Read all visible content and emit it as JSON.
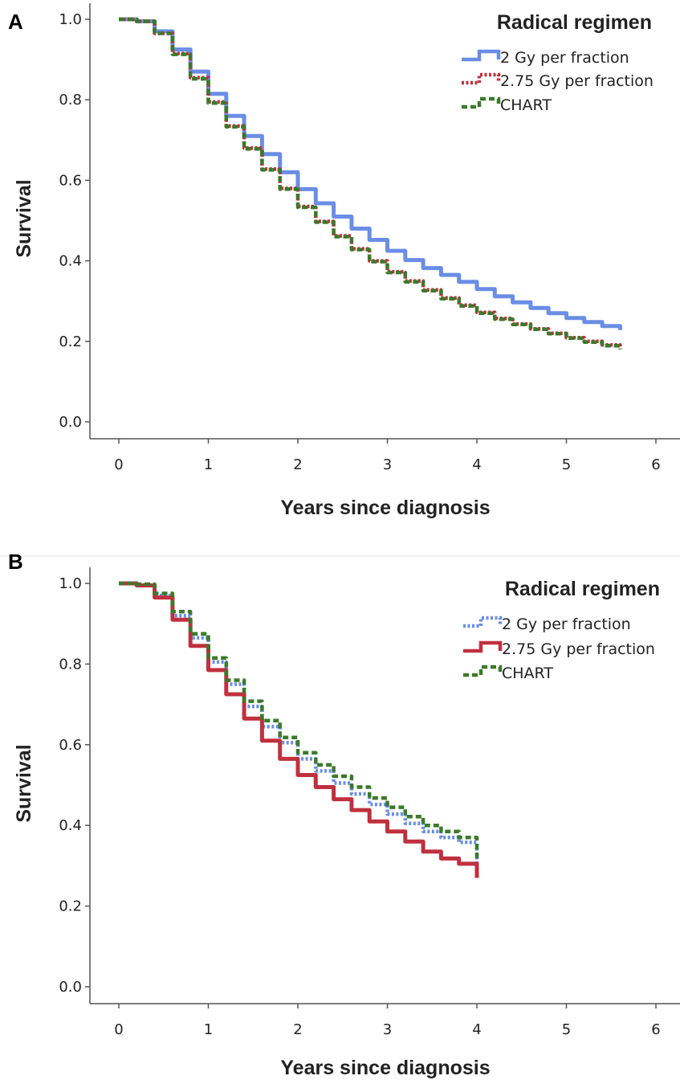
{
  "chart_data": [
    {
      "panel_label": "A",
      "type": "line",
      "step": true,
      "xlabel": "Years since diagnosis",
      "ylabel": "Survival",
      "xlim": [
        0,
        6
      ],
      "ylim": [
        0.0,
        1.0
      ],
      "x_ticks": [
        "0",
        "1",
        "2",
        "3",
        "4",
        "5",
        "6"
      ],
      "y_ticks": [
        "0.0",
        "0.2",
        "0.4",
        "0.6",
        "0.8",
        "1.0"
      ],
      "grid": false,
      "legend": {
        "title": "Radical regimen",
        "position": "top-right",
        "entries": [
          {
            "label": "2 Gy per fraction",
            "color": "#6a8ee6",
            "style": "solid"
          },
          {
            "label": "2.75 Gy per fraction",
            "color": "#c0303f",
            "style": "dotted"
          },
          {
            "label": "CHART",
            "color": "#3a7a2a",
            "style": "dashed"
          }
        ]
      },
      "series": [
        {
          "label": "2 Gy per fraction",
          "color": "#6a8ee6",
          "style": "solid",
          "x": [
            0,
            0.2,
            0.4,
            0.6,
            0.8,
            1.0,
            1.2,
            1.4,
            1.6,
            1.8,
            2.0,
            2.2,
            2.4,
            2.6,
            2.8,
            3.0,
            3.2,
            3.4,
            3.6,
            3.8,
            4.0,
            4.2,
            4.4,
            4.6,
            4.8,
            5.0,
            5.2,
            5.4,
            5.6
          ],
          "y": [
            1.0,
            0.995,
            0.97,
            0.925,
            0.87,
            0.815,
            0.76,
            0.71,
            0.665,
            0.62,
            0.578,
            0.543,
            0.51,
            0.48,
            0.452,
            0.425,
            0.402,
            0.382,
            0.365,
            0.348,
            0.33,
            0.312,
            0.297,
            0.283,
            0.27,
            0.258,
            0.248,
            0.238,
            0.228
          ]
        },
        {
          "label": "2.75 Gy per fraction",
          "color": "#c0303f",
          "style": "dotted",
          "x": [
            0,
            0.2,
            0.4,
            0.6,
            0.8,
            1.0,
            1.2,
            1.4,
            1.6,
            1.8,
            2.0,
            2.2,
            2.4,
            2.6,
            2.8,
            3.0,
            3.2,
            3.4,
            3.6,
            3.8,
            4.0,
            4.2,
            4.4,
            4.6,
            4.8,
            5.0,
            5.2,
            5.4,
            5.6
          ],
          "y": [
            1.0,
            0.995,
            0.965,
            0.915,
            0.855,
            0.795,
            0.735,
            0.68,
            0.628,
            0.58,
            0.535,
            0.498,
            0.462,
            0.43,
            0.4,
            0.373,
            0.35,
            0.328,
            0.308,
            0.29,
            0.272,
            0.257,
            0.243,
            0.231,
            0.22,
            0.209,
            0.2,
            0.191,
            0.182
          ]
        },
        {
          "label": "CHART",
          "color": "#3a7a2a",
          "style": "dashed",
          "x": [
            0,
            0.2,
            0.4,
            0.6,
            0.8,
            1.0,
            1.2,
            1.4,
            1.6,
            1.8,
            2.0,
            2.2,
            2.4,
            2.6,
            2.8,
            3.0,
            3.2,
            3.4,
            3.6,
            3.8,
            4.0,
            4.2,
            4.4,
            4.6,
            4.8,
            5.0,
            5.2,
            5.4,
            5.6
          ],
          "y": [
            1.0,
            0.995,
            0.965,
            0.913,
            0.852,
            0.792,
            0.733,
            0.678,
            0.626,
            0.578,
            0.533,
            0.496,
            0.46,
            0.428,
            0.398,
            0.371,
            0.348,
            0.326,
            0.306,
            0.288,
            0.27,
            0.255,
            0.242,
            0.23,
            0.219,
            0.208,
            0.198,
            0.189,
            0.18
          ]
        }
      ]
    },
    {
      "panel_label": "B",
      "type": "line",
      "step": true,
      "xlabel": "Years since diagnosis",
      "ylabel": "Survival",
      "xlim": [
        0,
        6
      ],
      "ylim": [
        0.0,
        1.0
      ],
      "x_ticks": [
        "0",
        "1",
        "2",
        "3",
        "4",
        "5",
        "6"
      ],
      "y_ticks": [
        "0.0",
        "0.2",
        "0.4",
        "0.6",
        "0.8",
        "1.0"
      ],
      "grid": false,
      "legend": {
        "title": "Radical regimen",
        "position": "top-right",
        "entries": [
          {
            "label": "2 Gy per fraction",
            "color": "#6a8ee6",
            "style": "dotted"
          },
          {
            "label": "2.75 Gy per fraction",
            "color": "#c0303f",
            "style": "solid"
          },
          {
            "label": "CHART",
            "color": "#3a7a2a",
            "style": "dashed"
          }
        ]
      },
      "series": [
        {
          "label": "2 Gy per fraction",
          "color": "#6a8ee6",
          "style": "dotted",
          "x": [
            0,
            0.2,
            0.4,
            0.6,
            0.8,
            1.0,
            1.2,
            1.4,
            1.6,
            1.8,
            2.0,
            2.2,
            2.4,
            2.6,
            2.8,
            3.0,
            3.2,
            3.4,
            3.6,
            3.8,
            4.0
          ],
          "y": [
            1.0,
            0.995,
            0.97,
            0.92,
            0.865,
            0.805,
            0.75,
            0.695,
            0.645,
            0.605,
            0.565,
            0.535,
            0.505,
            0.478,
            0.452,
            0.428,
            0.405,
            0.385,
            0.37,
            0.358,
            0.3
          ]
        },
        {
          "label": "2.75 Gy per fraction",
          "color": "#c0303f",
          "style": "solid",
          "x": [
            0,
            0.2,
            0.4,
            0.6,
            0.8,
            1.0,
            1.2,
            1.4,
            1.6,
            1.8,
            2.0,
            2.2,
            2.4,
            2.6,
            2.8,
            3.0,
            3.2,
            3.4,
            3.6,
            3.8,
            4.0
          ],
          "y": [
            1.0,
            0.995,
            0.965,
            0.91,
            0.845,
            0.785,
            0.725,
            0.665,
            0.61,
            0.565,
            0.525,
            0.495,
            0.465,
            0.438,
            0.41,
            0.385,
            0.36,
            0.335,
            0.318,
            0.305,
            0.27
          ]
        },
        {
          "label": "CHART",
          "color": "#3a7a2a",
          "style": "dashed",
          "x": [
            0,
            0.2,
            0.4,
            0.6,
            0.8,
            1.0,
            1.2,
            1.4,
            1.6,
            1.8,
            2.0,
            2.2,
            2.4,
            2.6,
            2.8,
            3.0,
            3.2,
            3.4,
            3.6,
            3.8,
            4.0
          ],
          "y": [
            1.0,
            0.998,
            0.975,
            0.93,
            0.875,
            0.815,
            0.76,
            0.708,
            0.66,
            0.618,
            0.58,
            0.55,
            0.522,
            0.495,
            0.468,
            0.445,
            0.422,
            0.4,
            0.385,
            0.37,
            0.318
          ]
        }
      ]
    }
  ]
}
